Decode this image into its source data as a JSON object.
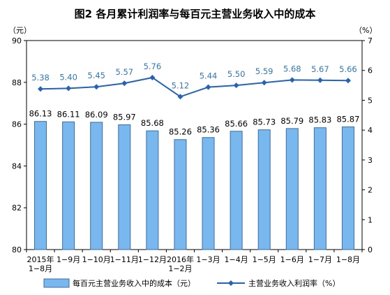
{
  "title": "图2  各月累计利润率与每百元主营业务收入中的成本",
  "chart_data": {
    "type": "bar+line",
    "categories": [
      [
        "2015年",
        "1−8月"
      ],
      [
        "1−9月"
      ],
      [
        "1−10月"
      ],
      [
        "1−11月"
      ],
      [
        "1−12月"
      ],
      [
        "2016年",
        "1−2月"
      ],
      [
        "1−3月"
      ],
      [
        "1−4月"
      ],
      [
        "1−5月"
      ],
      [
        "1−6月"
      ],
      [
        "1−7月"
      ],
      [
        "1−8月"
      ]
    ],
    "series": [
      {
        "name": "每百元主营业务收入中的成本（元）",
        "type": "bar",
        "axis": "left",
        "values": [
          86.13,
          86.11,
          86.09,
          85.97,
          85.68,
          85.26,
          85.36,
          85.66,
          85.73,
          85.79,
          85.83,
          85.87
        ]
      },
      {
        "name": "主营业务收入利润率（%）",
        "type": "line",
        "axis": "right",
        "values": [
          5.38,
          5.4,
          5.45,
          5.57,
          5.76,
          5.12,
          5.44,
          5.5,
          5.59,
          5.68,
          5.67,
          5.66
        ]
      }
    ],
    "y_left": {
      "unit": "（元）",
      "ylim": [
        80,
        90
      ],
      "ticks": [
        80,
        82,
        84,
        86,
        88,
        90
      ]
    },
    "y_right": {
      "unit": "（%）",
      "ylim": [
        0,
        7
      ],
      "ticks": [
        0,
        1,
        2,
        3,
        4,
        5,
        6,
        7
      ]
    },
    "grid": false,
    "legend_position": "bottom",
    "colors": {
      "bar_fill": "#79b8ee",
      "bar_stroke": "#3a6ea5",
      "line": "#2563b8",
      "line_label": "#2f78b8"
    }
  }
}
